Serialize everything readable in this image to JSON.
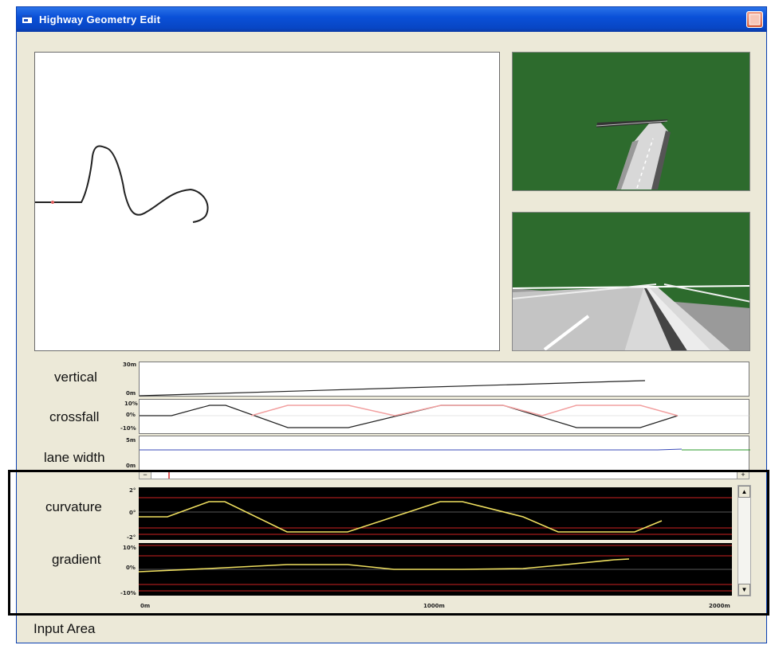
{
  "window": {
    "title": "Highway Geometry Edit"
  },
  "profiles": {
    "vertical": {
      "label": "vertical",
      "y_top": "30m",
      "y_bottom": "0m"
    },
    "crossfall": {
      "label": "crossfall",
      "y_top": "10%",
      "y_mid": "0%",
      "y_bottom": "-10%"
    },
    "lane_width": {
      "label": "lane width",
      "y_top": "5m",
      "y_bottom": "0m"
    }
  },
  "editor": {
    "curvature": {
      "label": "curvature",
      "y_top": "2°",
      "y_mid": "0°",
      "y_bottom": "-2°"
    },
    "gradient": {
      "label": "gradient",
      "y_top": "10%",
      "y_mid": "0%",
      "y_bottom": "-10%"
    },
    "x_axis": {
      "start": "0m",
      "mid": "1000m",
      "end": "2000m"
    },
    "scroll_minus": "−",
    "scroll_plus": "+"
  },
  "footer": {
    "input_area_label": "Input Area"
  },
  "colors": {
    "titlebar": "#0a50d8",
    "window_bg": "#ece9d8",
    "scene_green": "#2d6b2d",
    "curve_yellow": "#f0e060",
    "limit_red": "#cc2222"
  },
  "chart_data": [
    {
      "type": "line",
      "title": "vertical",
      "x_range_m": [
        0,
        2000
      ],
      "ylim": [
        "0m",
        "30m"
      ],
      "series": [
        {
          "values_x_m": [
            0,
            1750
          ],
          "values_y_m": [
            1,
            18
          ]
        }
      ]
    },
    {
      "type": "line",
      "title": "crossfall",
      "ylim": [
        -10,
        10
      ],
      "series": [
        {
          "values_x_m": [
            0,
            90,
            250,
            340,
            500,
            690,
            900,
            1090,
            1300,
            1490,
            1700,
            1900
          ],
          "values_y_pct": [
            0,
            0,
            7,
            7,
            -7,
            -7,
            7,
            7,
            -7,
            -7,
            7,
            0
          ]
        },
        {
          "values_x_m": [
            340,
            500,
            690,
            900,
            1090,
            1300,
            1490,
            1700,
            1900
          ],
          "values_y_pct": [
            -7,
            7,
            7,
            0,
            7,
            0,
            7,
            7,
            0
          ]
        }
      ]
    },
    {
      "type": "line",
      "title": "curvature",
      "ylim": [
        -2,
        2
      ],
      "series": [
        {
          "values_x_m": [
            0,
            90,
            250,
            340,
            500,
            690,
            900,
            1090,
            1300,
            1490,
            1700,
            1900
          ],
          "values_y_deg": [
            0,
            0,
            1,
            1,
            -1,
            -1,
            1,
            1,
            -1,
            -1,
            0,
            0
          ]
        }
      ]
    },
    {
      "type": "line",
      "title": "gradient",
      "ylim": [
        -10,
        10
      ],
      "series": [
        {
          "values_x_m": [
            0,
            250,
            500,
            690,
            900,
            1090,
            1300,
            1490,
            1700,
            1750
          ],
          "values_y_pct": [
            -2,
            -1,
            0,
            0,
            -1,
            -1,
            -1,
            0,
            1,
            2
          ]
        }
      ]
    }
  ]
}
